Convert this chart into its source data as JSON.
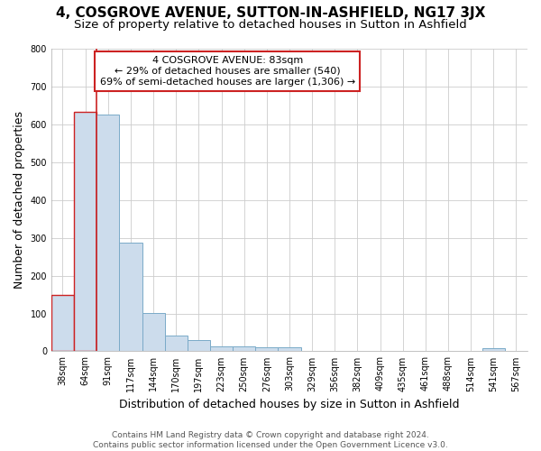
{
  "title": "4, COSGROVE AVENUE, SUTTON-IN-ASHFIELD, NG17 3JX",
  "subtitle": "Size of property relative to detached houses in Sutton in Ashfield",
  "xlabel": "Distribution of detached houses by size in Sutton in Ashfield",
  "ylabel": "Number of detached properties",
  "footer_line1": "Contains HM Land Registry data © Crown copyright and database right 2024.",
  "footer_line2": "Contains public sector information licensed under the Open Government Licence v3.0.",
  "annotation_line1": "4 COSGROVE AVENUE: 83sqm",
  "annotation_line2": "← 29% of detached houses are smaller (540)",
  "annotation_line3": "69% of semi-detached houses are larger (1,306) →",
  "bar_labels": [
    "38sqm",
    "64sqm",
    "91sqm",
    "117sqm",
    "144sqm",
    "170sqm",
    "197sqm",
    "223sqm",
    "250sqm",
    "276sqm",
    "303sqm",
    "329sqm",
    "356sqm",
    "382sqm",
    "409sqm",
    "435sqm",
    "461sqm",
    "488sqm",
    "514sqm",
    "541sqm",
    "567sqm"
  ],
  "bar_values": [
    148,
    632,
    625,
    288,
    101,
    41,
    29,
    12,
    12,
    11,
    10,
    0,
    2,
    0,
    0,
    0,
    0,
    0,
    0,
    8,
    0
  ],
  "bar_color": "#ccdcec",
  "bar_edge_color": "#7aaac8",
  "highlight_edge_color": "#cc2222",
  "vline_color": "#cc2222",
  "vline_x_index": 1.5,
  "ylim": [
    0,
    800
  ],
  "yticks": [
    0,
    100,
    200,
    300,
    400,
    500,
    600,
    700,
    800
  ],
  "bg_color": "#ffffff",
  "plot_bg_color": "#ffffff",
  "grid_color": "#cccccc",
  "annotation_box_color": "white",
  "annotation_box_edge_color": "#cc2222",
  "title_fontsize": 11,
  "subtitle_fontsize": 9.5,
  "axis_label_fontsize": 9,
  "tick_fontsize": 7,
  "annotation_fontsize": 8,
  "footer_fontsize": 6.5
}
